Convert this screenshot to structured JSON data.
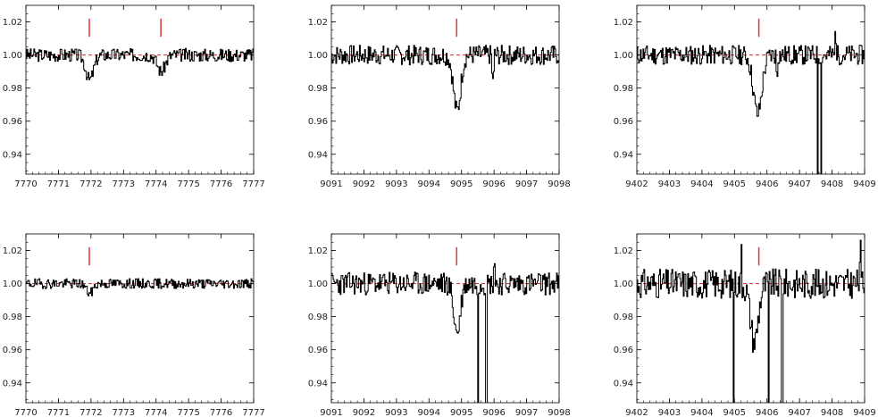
{
  "colors": {
    "spectrum": "#000000",
    "continuum": "#dd2222",
    "marker": "#e04040"
  },
  "chart_data": [
    {
      "type": "line",
      "row": 1,
      "col": 1,
      "xlim": [
        7770,
        7777
      ],
      "ylim": [
        0.928,
        1.03
      ],
      "xticks": [
        "7770",
        "7771",
        "7772",
        "7773",
        "7774",
        "7775",
        "7776",
        "7777"
      ],
      "yticks": [
        "0.94",
        "0.96",
        "0.98",
        "1.00",
        "1.02"
      ],
      "continuum": 1.0,
      "markers": [
        7771.95,
        7774.15
      ],
      "dips": [
        [
          7771.95,
          0.015,
          0.12
        ],
        [
          7774.15,
          0.01,
          0.12
        ]
      ],
      "noise": 0.004,
      "spikes": [],
      "seed": 3
    },
    {
      "type": "line",
      "row": 1,
      "col": 2,
      "xlim": [
        9091,
        9098
      ],
      "ylim": [
        0.928,
        1.03
      ],
      "xticks": [
        "9091",
        "9092",
        "9093",
        "9094",
        "9095",
        "9096",
        "9097",
        "9098"
      ],
      "yticks": [
        "0.94",
        "0.96",
        "0.98",
        "1.00",
        "1.02"
      ],
      "continuum": 1.0,
      "markers": [
        9094.85
      ],
      "dips": [
        [
          9094.85,
          0.034,
          0.11
        ]
      ],
      "noise": 0.006,
      "spikes": [
        [
          9095.95,
          -0.013,
          0.08
        ]
      ],
      "seed": 7
    },
    {
      "type": "line",
      "row": 1,
      "col": 3,
      "xlim": [
        9402,
        9409
      ],
      "ylim": [
        0.928,
        1.03
      ],
      "xticks": [
        "9402",
        "9403",
        "9404",
        "9405",
        "9406",
        "9407",
        "9408",
        "9409"
      ],
      "yticks": [
        "0.94",
        "0.96",
        "0.98",
        "1.00",
        "1.02"
      ],
      "continuum": 1.0,
      "markers": [
        9405.75
      ],
      "dips": [
        [
          9405.7,
          0.036,
          0.13
        ]
      ],
      "noise": 0.006,
      "spikes": [
        [
          9407.55,
          -0.08,
          0.04
        ],
        [
          9407.65,
          -0.08,
          0.03
        ],
        [
          9406.3,
          -0.01,
          0.05
        ],
        [
          9408.1,
          0.012,
          0.05
        ]
      ],
      "seed": 11
    },
    {
      "type": "line",
      "row": 2,
      "col": 1,
      "xlim": [
        7770,
        7777
      ],
      "ylim": [
        0.928,
        1.03
      ],
      "xticks": [
        "7770",
        "7771",
        "7772",
        "7773",
        "7774",
        "7775",
        "7776",
        "7777"
      ],
      "yticks": [
        "0.94",
        "0.96",
        "0.98",
        "1.00",
        "1.02"
      ],
      "continuum": 1.0,
      "markers": [
        7771.95
      ],
      "dips": [
        [
          7771.95,
          0.006,
          0.1
        ]
      ],
      "noise": 0.003,
      "spikes": [],
      "seed": 19
    },
    {
      "type": "line",
      "row": 2,
      "col": 2,
      "xlim": [
        9091,
        9098
      ],
      "ylim": [
        0.928,
        1.03
      ],
      "xticks": [
        "9091",
        "9092",
        "9093",
        "9094",
        "9095",
        "9096",
        "9097",
        "9098"
      ],
      "yticks": [
        "0.94",
        "0.96",
        "0.98",
        "1.00",
        "1.02"
      ],
      "continuum": 1.0,
      "markers": [
        9094.85
      ],
      "dips": [
        [
          9094.85,
          0.03,
          0.1
        ]
      ],
      "noise": 0.007,
      "spikes": [
        [
          9095.5,
          -0.07,
          0.03
        ],
        [
          9095.75,
          -0.07,
          0.04
        ],
        [
          9096.0,
          0.012,
          0.05
        ]
      ],
      "seed": 23
    },
    {
      "type": "line",
      "row": 2,
      "col": 3,
      "xlim": [
        9402,
        9409
      ],
      "ylim": [
        0.928,
        1.03
      ],
      "xticks": [
        "9402",
        "9403",
        "9404",
        "9405",
        "9406",
        "9407",
        "9408",
        "9409"
      ],
      "yticks": [
        "0.94",
        "0.96",
        "0.98",
        "1.00",
        "1.02"
      ],
      "continuum": 1.0,
      "markers": [
        9405.75
      ],
      "dips": [
        [
          9405.6,
          0.035,
          0.12
        ]
      ],
      "noise": 0.009,
      "spikes": [
        [
          9404.95,
          -0.08,
          0.03
        ],
        [
          9405.2,
          0.022,
          0.03
        ],
        [
          9406.05,
          -0.08,
          0.03
        ],
        [
          9406.45,
          -0.08,
          0.04
        ],
        [
          9408.85,
          0.018,
          0.04
        ]
      ],
      "seed": 31
    }
  ]
}
